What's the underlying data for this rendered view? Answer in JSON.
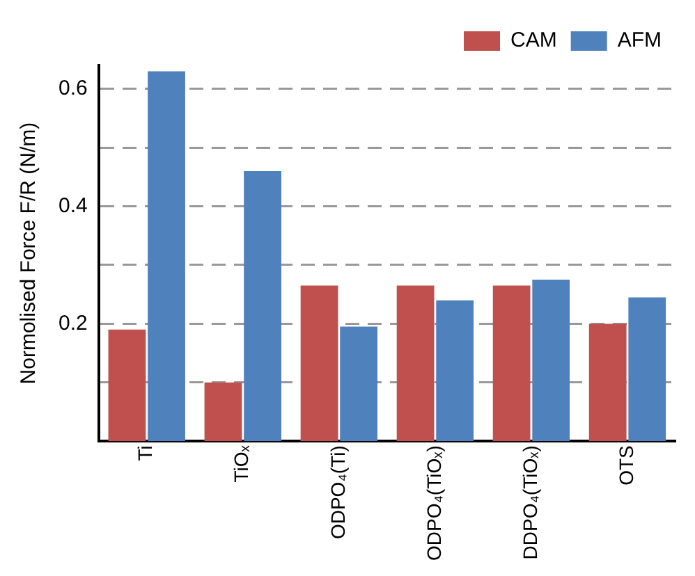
{
  "chart_data": {
    "type": "bar",
    "ylabel": "Normolised Force F/R (N/m)",
    "categories": [
      "Ti",
      "TiOₓ",
      "ODPO₄(Ti)",
      "ODPO₄(TiOₓ)",
      "DDPO₄(TiOₓ)",
      "OTS"
    ],
    "series": [
      {
        "name": "CAM",
        "color": "#c0504d",
        "values": [
          0.19,
          0.1,
          0.265,
          0.265,
          0.265,
          0.2
        ]
      },
      {
        "name": "AFM",
        "color": "#4f81bd",
        "values": [
          0.63,
          0.46,
          0.195,
          0.24,
          0.275,
          0.245
        ]
      }
    ],
    "ylim": [
      0,
      0.64
    ],
    "yticks": [
      {
        "value": 0.1,
        "label": null
      },
      0.2,
      {
        "value": 0.3,
        "label": null
      },
      0.4,
      {
        "value": 0.5,
        "label": null
      },
      0.6
    ],
    "grid": "y",
    "legend": "top right"
  }
}
